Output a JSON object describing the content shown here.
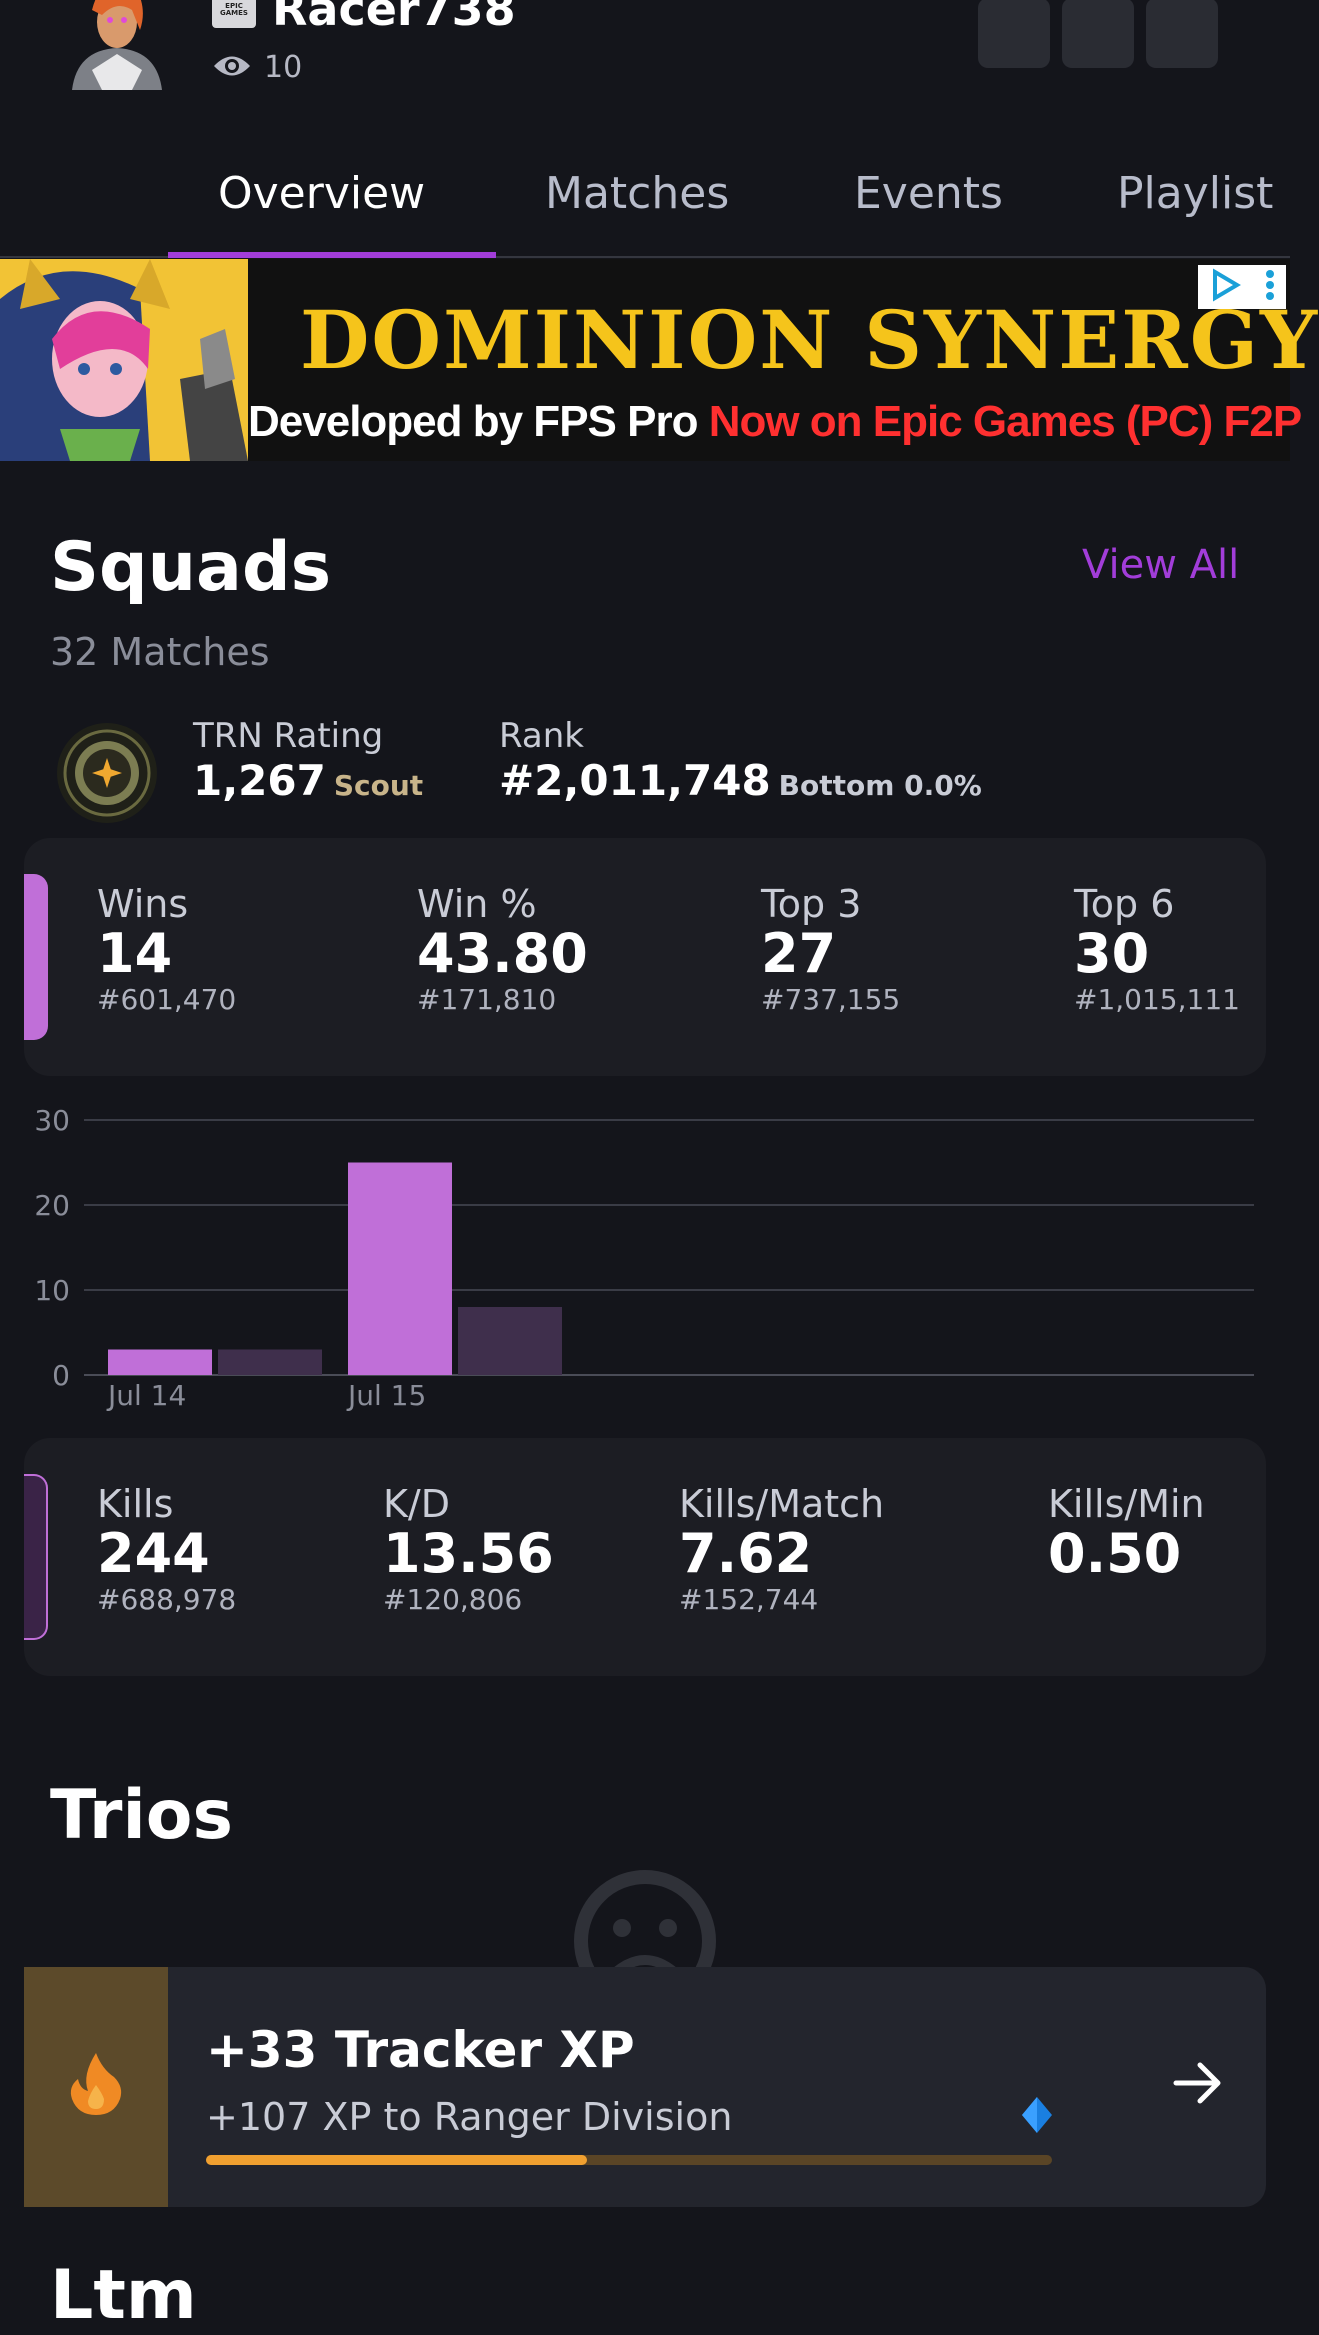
{
  "profile": {
    "username": "Racer738",
    "views": "10",
    "brand_badge": "EPIC GAMES"
  },
  "tabs": [
    {
      "label": "Overview",
      "active": true
    },
    {
      "label": "Matches",
      "active": false
    },
    {
      "label": "Events",
      "active": false
    },
    {
      "label": "Playlist",
      "active": false
    }
  ],
  "ad": {
    "title": "DOMINION SYNERGY",
    "sub_white": "Developed by FPS Pro ",
    "sub_red": "Now on Epic Games (PC) F2P"
  },
  "squads": {
    "title": "Squads",
    "view_all": "View All",
    "matches": "32 Matches",
    "trn_label": "TRN Rating",
    "trn_value": "1,267",
    "trn_tier": "Scout",
    "rank_label": "Rank",
    "rank_value": "#2,011,748",
    "rank_sub": "Bottom 0.0%",
    "stats_top": [
      {
        "label": "Wins",
        "value": "14",
        "rank": "#601,470"
      },
      {
        "label": "Win %",
        "value": "43.80",
        "rank": "#171,810"
      },
      {
        "label": "Top 3",
        "value": "27",
        "rank": "#737,155"
      },
      {
        "label": "Top 6",
        "value": "30",
        "rank": "#1,015,111"
      }
    ],
    "stats_bottom": [
      {
        "label": "Kills",
        "value": "244",
        "rank": "#688,978"
      },
      {
        "label": "K/D",
        "value": "13.56",
        "rank": "#120,806"
      },
      {
        "label": "Kills/Match",
        "value": "7.62",
        "rank": "#152,744"
      },
      {
        "label": "Kills/Min",
        "value": "0.50",
        "rank": ""
      }
    ]
  },
  "chart_data": {
    "type": "bar",
    "categories": [
      "Jul 14",
      "Jul 15"
    ],
    "series": [
      {
        "values": [
          3,
          25
        ],
        "color": "#c06fd8"
      },
      {
        "values": [
          3,
          8
        ],
        "color": "#3f2f4c"
      }
    ],
    "yticks": [
      0,
      10,
      20,
      30
    ],
    "ylim": [
      0,
      30
    ],
    "grid": true
  },
  "trios": {
    "title": "Trios"
  },
  "xp": {
    "title": "+33 Tracker XP",
    "subtitle": "+107 XP to Ranger Division",
    "progress": 0.45
  },
  "next_section": "Ltm",
  "colors": {
    "accent": "#a23dd9",
    "bar_primary": "#c06fd8",
    "bar_secondary": "#3f2f4c",
    "background": "#14151b",
    "card": "#1c1d23"
  },
  "icons": {
    "views": "eye-icon",
    "xp": "flame-icon",
    "arrow": "arrow-right-icon",
    "gem": "gem-icon",
    "empty": "sad-face-icon"
  }
}
